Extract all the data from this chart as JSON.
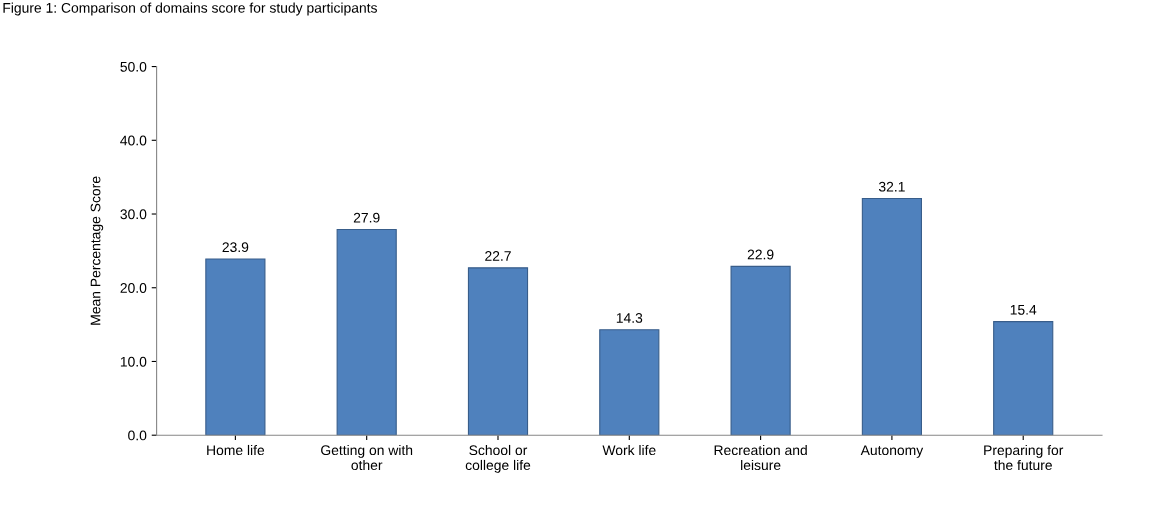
{
  "chart_data": {
    "type": "bar",
    "title": "Figure 1: Comparison of domains score for study participants",
    "ylabel": "Mean Percentage Score",
    "categories": [
      "Home life",
      "Getting on with\nother",
      "School or\ncollege life",
      "Work life",
      "Recreation and\nleisure",
      "Autonomy",
      "Preparing for\nthe future"
    ],
    "values": [
      23.9,
      27.9,
      22.7,
      14.3,
      22.9,
      32.1,
      15.4
    ],
    "color": "#4f81bd",
    "ylim": [
      0,
      50
    ],
    "yticks": [
      {
        "value": 0,
        "label": "0.0"
      },
      {
        "value": 10,
        "label": "10.0"
      },
      {
        "value": 20,
        "label": "20.0"
      },
      {
        "value": 30,
        "label": "30.0"
      },
      {
        "value": 40,
        "label": "40.0"
      },
      {
        "value": 50,
        "label": "50.0"
      }
    ],
    "data_labels": true,
    "grid": false
  }
}
